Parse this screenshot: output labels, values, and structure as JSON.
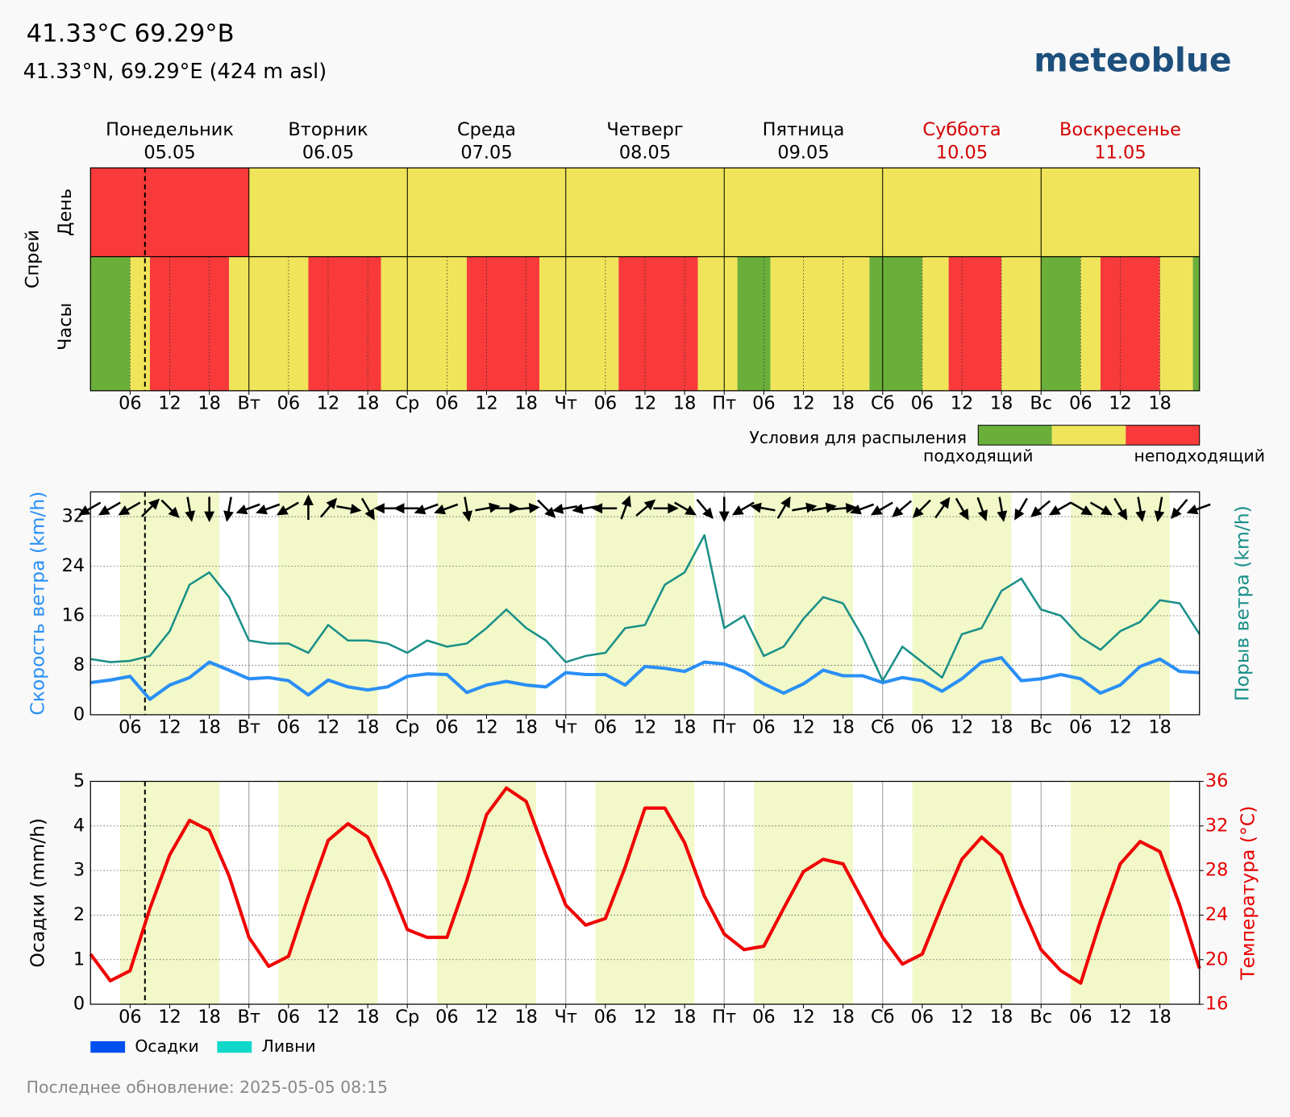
{
  "header": {
    "title": "41.33°C 69.29°B",
    "subtitle": "41.33°N, 69.29°E (424 m asl)",
    "logo": "meteoblue"
  },
  "footer": "Последнее обновление: 2025-05-05 08:15",
  "days": [
    {
      "name": "Понедельник",
      "date": "05.05",
      "color": "#000000"
    },
    {
      "name": "Вторник",
      "date": "06.05",
      "color": "#000000"
    },
    {
      "name": "Среда",
      "date": "07.05",
      "color": "#000000"
    },
    {
      "name": "Четверг",
      "date": "08.05",
      "color": "#000000"
    },
    {
      "name": "Пятница",
      "date": "09.05",
      "color": "#000000"
    },
    {
      "name": "Суббота",
      "date": "10.05",
      "color": "#d40000"
    },
    {
      "name": "Воскресенье",
      "date": "11.05",
      "color": "#d40000"
    }
  ],
  "x_axis": {
    "xlim": [
      0,
      168
    ],
    "xticks": [
      {
        "value": 6,
        "label": "06"
      },
      {
        "value": 12,
        "label": "12"
      },
      {
        "value": 18,
        "label": "18"
      },
      {
        "value": 24,
        "label": "Вт"
      },
      {
        "value": 30,
        "label": "06"
      },
      {
        "value": 36,
        "label": "12"
      },
      {
        "value": 42,
        "label": "18"
      },
      {
        "value": 48,
        "label": "Ср"
      },
      {
        "value": 54,
        "label": "06"
      },
      {
        "value": 60,
        "label": "12"
      },
      {
        "value": 66,
        "label": "18"
      },
      {
        "value": 72,
        "label": "Чт"
      },
      {
        "value": 78,
        "label": "06"
      },
      {
        "value": 84,
        "label": "12"
      },
      {
        "value": 90,
        "label": "18"
      },
      {
        "value": 96,
        "label": "Пт"
      },
      {
        "value": 102,
        "label": "06"
      },
      {
        "value": 108,
        "label": "12"
      },
      {
        "value": 114,
        "label": "18"
      },
      {
        "value": 120,
        "label": "Сб"
      },
      {
        "value": 126,
        "label": "06"
      },
      {
        "value": 132,
        "label": "12"
      },
      {
        "value": 138,
        "label": "18"
      },
      {
        "value": 144,
        "label": "Вс"
      },
      {
        "value": 150,
        "label": "06"
      },
      {
        "value": 156,
        "label": "12"
      },
      {
        "value": 162,
        "label": "18"
      }
    ]
  },
  "daylight": [
    [
      4.5,
      19.5
    ],
    [
      28.5,
      43.5
    ],
    [
      52.5,
      67.5
    ],
    [
      76.5,
      91.5
    ],
    [
      100.5,
      115.5
    ],
    [
      124.5,
      139.5
    ],
    [
      148.5,
      163.5
    ]
  ],
  "now_hour": 8.25,
  "chart_data": [
    {
      "type": "timeline",
      "title": "Спрей",
      "row_labels": [
        "День",
        "Часы"
      ],
      "levels": [
        "#6aaf3a",
        "#f0e55a",
        "#f83a3a"
      ],
      "day_levels": [
        2,
        1,
        1,
        1,
        1,
        1,
        1
      ],
      "segments": [
        {
          "start": 0,
          "end": 6,
          "level": 0
        },
        {
          "start": 6,
          "end": 9,
          "level": 1
        },
        {
          "start": 9,
          "end": 21,
          "level": 2
        },
        {
          "start": 21,
          "end": 33,
          "level": 1
        },
        {
          "start": 33,
          "end": 44,
          "level": 2
        },
        {
          "start": 44,
          "end": 57,
          "level": 1
        },
        {
          "start": 57,
          "end": 68,
          "level": 2
        },
        {
          "start": 68,
          "end": 80,
          "level": 1
        },
        {
          "start": 80,
          "end": 92,
          "level": 2
        },
        {
          "start": 92,
          "end": 98,
          "level": 1
        },
        {
          "start": 98,
          "end": 103,
          "level": 0
        },
        {
          "start": 103,
          "end": 118,
          "level": 1
        },
        {
          "start": 118,
          "end": 126,
          "level": 0
        },
        {
          "start": 126,
          "end": 130,
          "level": 1
        },
        {
          "start": 130,
          "end": 138,
          "level": 2
        },
        {
          "start": 138,
          "end": 144,
          "level": 1
        },
        {
          "start": 144,
          "end": 150,
          "level": 0
        },
        {
          "start": 150,
          "end": 153,
          "level": 1
        },
        {
          "start": 153,
          "end": 162,
          "level": 2
        },
        {
          "start": 162,
          "end": 167,
          "level": 1
        },
        {
          "start": 167,
          "end": 168,
          "level": 0
        }
      ],
      "legend": {
        "title": "Условия для распыления",
        "low": "подходящий",
        "high": "неподходящий"
      }
    },
    {
      "type": "line",
      "ylabel": "Скорость ветра (km/h)",
      "y2label": "Порыв ветра (km/h)",
      "ylim": [
        0,
        36
      ],
      "yticks": [
        0,
        8,
        16,
        24,
        32
      ],
      "grid": true,
      "x": [
        0,
        3,
        6,
        9,
        12,
        15,
        18,
        21,
        24,
        27,
        30,
        33,
        36,
        39,
        42,
        45,
        48,
        51,
        54,
        57,
        60,
        63,
        66,
        69,
        72,
        75,
        78,
        81,
        84,
        87,
        90,
        93,
        96,
        99,
        102,
        105,
        108,
        111,
        114,
        117,
        120,
        123,
        126,
        129,
        132,
        135,
        138,
        141,
        144,
        147,
        150,
        153,
        156,
        159,
        162,
        165,
        168
      ],
      "series": [
        {
          "color": "#2a8ff5",
          "width": 4,
          "values": [
            5.2,
            5.6,
            6.2,
            2.5,
            4.8,
            6,
            8.5,
            7.2,
            5.8,
            6,
            5.5,
            3.2,
            5.6,
            4.5,
            4,
            4.5,
            6.2,
            6.6,
            6.5,
            3.6,
            4.8,
            5.4,
            4.8,
            4.5,
            6.8,
            6.5,
            6.5,
            4.8,
            7.8,
            7.5,
            7,
            8.5,
            8.2,
            7,
            5,
            3.5,
            5,
            7.2,
            6.3,
            6.3,
            5.2,
            6,
            5.5,
            3.8,
            5.8,
            8.5,
            9.2,
            5.5,
            5.8,
            6.5,
            5.8,
            3.5,
            4.8,
            7.8,
            9,
            7,
            6.8
          ]
        },
        {
          "color": "#1a9088",
          "width": 2.5,
          "values": [
            9,
            8.5,
            8.7,
            9.5,
            13.5,
            21,
            23,
            19,
            12,
            11.5,
            11.5,
            10,
            14.5,
            12,
            12,
            11.5,
            10,
            12,
            11,
            11.5,
            14,
            17,
            14,
            12,
            8.5,
            9.5,
            10,
            14,
            14.5,
            21,
            23,
            29,
            14,
            16,
            9.5,
            11,
            15.5,
            19,
            18,
            12.5,
            5.5,
            11,
            8.5,
            6,
            13,
            14,
            20,
            22,
            17,
            16,
            12.5,
            10.5,
            13.5,
            15,
            18.5,
            18,
            13
          ]
        }
      ],
      "wind_direction": [
        60,
        60,
        60,
        225,
        315,
        350,
        0,
        10,
        70,
        70,
        60,
        180,
        220,
        280,
        330,
        90,
        90,
        70,
        70,
        350,
        260,
        270,
        265,
        315,
        80,
        80,
        90,
        200,
        230,
        270,
        300,
        320,
        0,
        60,
        100,
        210,
        260,
        260,
        265,
        70,
        60,
        50,
        45,
        215,
        330,
        340,
        350,
        30,
        50,
        60,
        300,
        300,
        330,
        350,
        10,
        40,
        70
      ]
    },
    {
      "type": "line",
      "ylabel": "Осадки (mm/h)",
      "y2label": "Температура (°C)",
      "ylim": [
        0,
        5
      ],
      "yticks": [
        0,
        1,
        2,
        3,
        4,
        5
      ],
      "y2lim": [
        16,
        36
      ],
      "y2ticks": [
        16,
        20,
        24,
        28,
        32,
        36
      ],
      "y2color": "#e60000",
      "grid": true,
      "x": [
        0,
        3,
        6,
        9,
        12,
        15,
        18,
        21,
        24,
        27,
        30,
        33,
        36,
        39,
        42,
        45,
        48,
        51,
        54,
        57,
        60,
        63,
        66,
        69,
        72,
        75,
        78,
        81,
        84,
        87,
        90,
        93,
        96,
        99,
        102,
        105,
        108,
        111,
        114,
        117,
        120,
        123,
        126,
        129,
        132,
        135,
        138,
        141,
        144,
        147,
        150,
        153,
        156,
        159,
        162,
        165,
        168
      ],
      "series": [
        {
          "color": "#f00000",
          "width": 4,
          "axis": "y2",
          "values": [
            20.5,
            18.1,
            19,
            24.6,
            29.4,
            32.5,
            31.6,
            27.5,
            22,
            19.4,
            20.3,
            25.7,
            30.7,
            32.2,
            31,
            27.1,
            22.7,
            22,
            22,
            27.1,
            33,
            35.4,
            34.2,
            29.4,
            24.9,
            23.1,
            23.7,
            28.3,
            33.6,
            33.6,
            30.5,
            25.7,
            22.3,
            20.9,
            21.2,
            24.6,
            27.9,
            29,
            28.6,
            25.3,
            22,
            19.6,
            20.5,
            24.9,
            29,
            31,
            29.4,
            24.9,
            20.9,
            19,
            17.9,
            23.5,
            28.6,
            30.6,
            29.7,
            24.9,
            19.2
          ]
        }
      ],
      "legend": [
        {
          "name": "Осадки",
          "color": "#0050f0"
        },
        {
          "name": "Ливни",
          "color": "#10d8c8"
        }
      ]
    }
  ]
}
